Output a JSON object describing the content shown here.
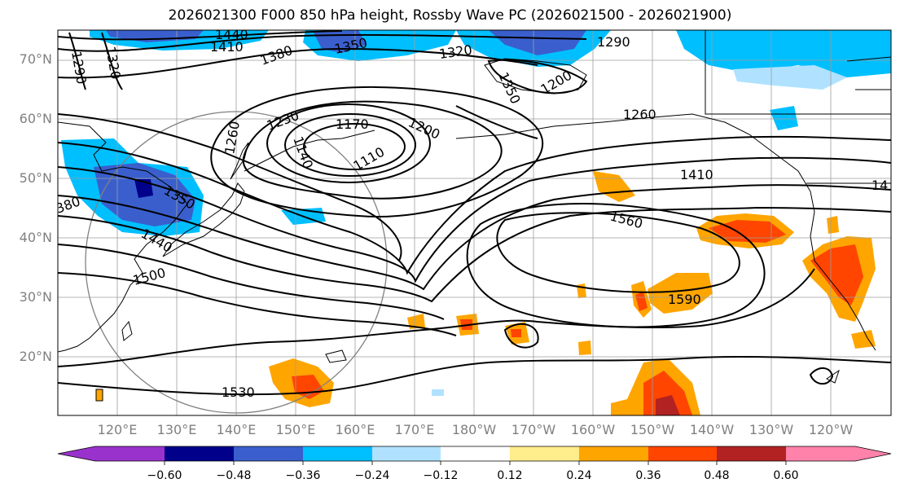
{
  "title": "2026021300 F000 850 hPa height, Rossby Wave PC (2026021500 - 2026021900)",
  "latitude_labels": [
    "70°N",
    "60°N",
    "50°N",
    "40°N",
    "30°N",
    "20°N"
  ],
  "longitude_labels": [
    "120°E",
    "130°E",
    "140°E",
    "150°E",
    "160°E",
    "170°E",
    "180°W",
    "170°W",
    "160°W",
    "150°W",
    "140°W",
    "130°W",
    "120°W"
  ],
  "contour_labels": [
    "1440",
    "1410",
    "1380",
    "1350",
    "1320",
    "1290",
    "1320",
    "1290",
    "1350",
    "1200",
    "1260",
    "1230",
    "1170",
    "1200",
    "1260",
    "1140",
    "1110",
    "1410",
    "1560",
    "1590",
    "1500",
    "1440",
    "1350",
    "380",
    "1530",
    "14"
  ],
  "colorbar": {
    "ticks": [
      "−0.60",
      "−0.48",
      "−0.36",
      "−0.24",
      "−0.12",
      "0.12",
      "0.24",
      "0.36",
      "0.48",
      "0.60"
    ],
    "colors": [
      "#9932cc",
      "#00008b",
      "#3a5fcd",
      "#00bfff",
      "#b0e2ff",
      "#ffffff",
      "#ffec8b",
      "#ffa500",
      "#ff4500",
      "#b22222",
      "#ff82ab"
    ]
  }
}
